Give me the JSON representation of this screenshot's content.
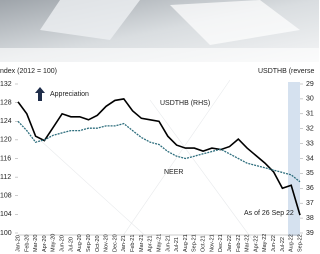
{
  "chart_data": {
    "type": "line",
    "axis_title_left": "ndex (2012 = 100)",
    "axis_title_right": "USDTHB (reverse",
    "annotations": [
      "Appreciation",
      "USDTHB (RHS)",
      "NEER",
      "As of 26 Sep 22"
    ],
    "categories": [
      "Jan-20",
      "Feb-20",
      "Mar-20",
      "Apr-20",
      "May-20",
      "Jun-20",
      "Jul-20",
      "Aug-20",
      "Sep-20",
      "Oct-20",
      "Nov-20",
      "Dec-20",
      "Jan-21",
      "Feb-21",
      "Mar-21",
      "Apr-21",
      "May-21",
      "Jun-21",
      "Jul-21",
      "Aug-21",
      "Sep-21",
      "Oct-21",
      "Nov-21",
      "Dec-21",
      "Jan-22",
      "Feb-22",
      "Mar-22",
      "Apr-22",
      "May-22",
      "Jun-22",
      "Jul-22",
      "Aug-22",
      "Sep-22"
    ],
    "series": [
      {
        "name": "USDTHB (RHS)",
        "color": "#000000",
        "axis": "y2",
        "dashed": false,
        "values": [
          30.2,
          31.0,
          32.5,
          32.8,
          31.9,
          31.0,
          31.2,
          31.2,
          31.4,
          31.1,
          30.5,
          30.1,
          30.0,
          30.8,
          31.3,
          31.4,
          31.5,
          32.5,
          33.1,
          33.3,
          33.3,
          33.5,
          33.3,
          33.4,
          33.2,
          32.7,
          33.3,
          33.8,
          34.3,
          34.9,
          36.0,
          35.8,
          37.8
        ]
      },
      {
        "name": "NEER",
        "color": "#2f6f7e",
        "dashed": true,
        "values": [
          124,
          122,
          119.5,
          120,
          121,
          121.5,
          122,
          122,
          122.5,
          122.5,
          123,
          123,
          123.5,
          122,
          120.5,
          119.5,
          119,
          117.5,
          116.5,
          116,
          116.5,
          117,
          117.5,
          118,
          117,
          116,
          115,
          114.5,
          114,
          113.5,
          113,
          112.5,
          111
        ]
      }
    ],
    "ylim": [
      100,
      132
    ],
    "yticks": [
      100,
      104,
      108,
      112,
      116,
      120,
      124,
      128,
      132
    ],
    "y2lim": [
      29,
      39
    ],
    "y2reversed": true,
    "y2ticks": [
      29,
      30,
      31,
      32,
      33,
      34,
      35,
      36,
      37,
      38,
      39
    ],
    "grid": false
  }
}
